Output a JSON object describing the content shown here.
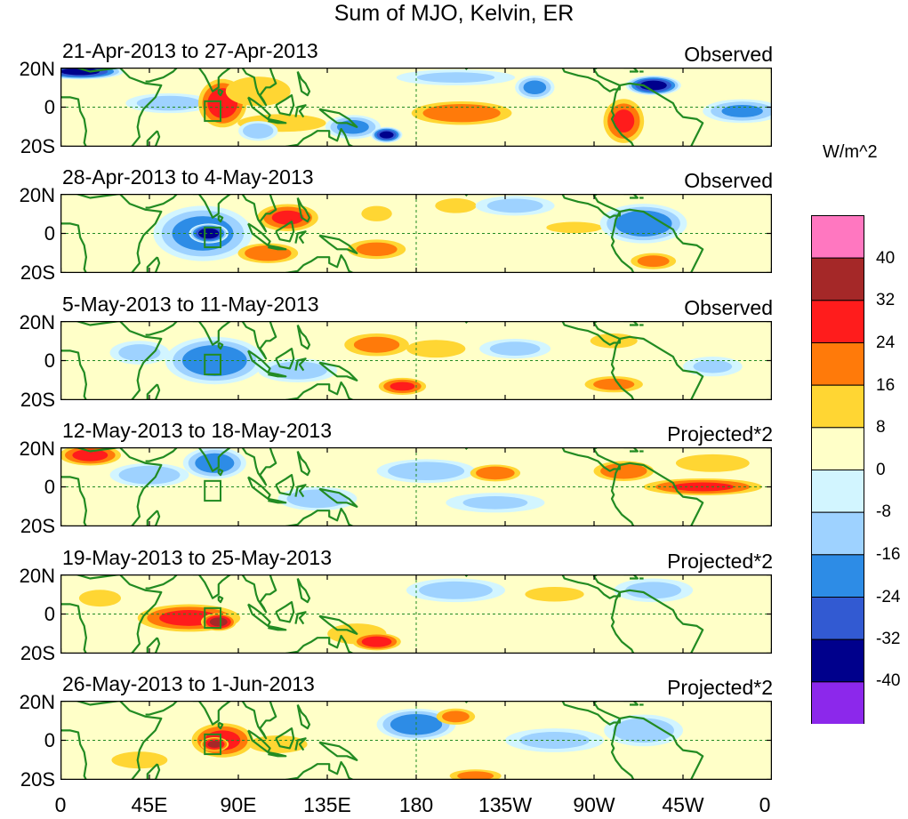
{
  "title": "Sum of MJO, Kelvin, ER",
  "units": "W/m^2",
  "panels": [
    {
      "date_range": "21-Apr-2013 to 27-Apr-2013",
      "type": "Observed",
      "anomalies": [
        {
          "lon": 10,
          "lat": 18,
          "w": 22,
          "h": 4,
          "v": -34
        },
        {
          "lon": 55,
          "lat": 2,
          "w": 22,
          "h": 5,
          "v": -12
        },
        {
          "lon": 82,
          "lat": 2,
          "w": 14,
          "h": 14,
          "v": 28
        },
        {
          "lon": 100,
          "lat": 8,
          "w": 22,
          "h": 10,
          "v": 12
        },
        {
          "lon": 112,
          "lat": -8,
          "w": 30,
          "h": 6,
          "v": 12
        },
        {
          "lon": 100,
          "lat": -12,
          "w": 10,
          "h": 5,
          "v": -14
        },
        {
          "lon": 148,
          "lat": -10,
          "w": 14,
          "h": 6,
          "v": -18
        },
        {
          "lon": 165,
          "lat": -14,
          "w": 8,
          "h": 4,
          "v": -34
        },
        {
          "lon": 203,
          "lat": -3,
          "w": 30,
          "h": 7,
          "v": 22
        },
        {
          "lon": 200,
          "lat": 15,
          "w": 30,
          "h": 4,
          "v": -8
        },
        {
          "lon": 240,
          "lat": 10,
          "w": 10,
          "h": 6,
          "v": -18
        },
        {
          "lon": 285,
          "lat": -7,
          "w": 12,
          "h": 13,
          "v": 24
        },
        {
          "lon": 300,
          "lat": 11,
          "w": 14,
          "h": 5,
          "v": -36
        },
        {
          "lon": 345,
          "lat": -2,
          "w": 20,
          "h": 6,
          "v": -16
        },
        {
          "lon": 30,
          "lat": -12,
          "w": 20,
          "h": 6,
          "v": 6
        }
      ]
    },
    {
      "date_range": "28-Apr-2013 to 4-May-2013",
      "type": "Observed",
      "anomalies": [
        {
          "lon": 72,
          "lat": 0,
          "w": 25,
          "h": 14,
          "v": -20
        },
        {
          "lon": 75,
          "lat": 0,
          "w": 10,
          "h": 5,
          "v": -38
        },
        {
          "lon": 115,
          "lat": 8,
          "w": 18,
          "h": 8,
          "v": 24
        },
        {
          "lon": 105,
          "lat": -10,
          "w": 18,
          "h": 6,
          "v": 22
        },
        {
          "lon": 160,
          "lat": 10,
          "w": 10,
          "h": 5,
          "v": 14
        },
        {
          "lon": 160,
          "lat": -8,
          "w": 18,
          "h": 6,
          "v": 18
        },
        {
          "lon": 200,
          "lat": 14,
          "w": 14,
          "h": 5,
          "v": 12
        },
        {
          "lon": 230,
          "lat": 14,
          "w": 20,
          "h": 5,
          "v": -10
        },
        {
          "lon": 260,
          "lat": 3,
          "w": 20,
          "h": 4,
          "v": 10
        },
        {
          "lon": 295,
          "lat": 5,
          "w": 22,
          "h": 10,
          "v": -22
        },
        {
          "lon": 300,
          "lat": -14,
          "w": 14,
          "h": 5,
          "v": 18
        },
        {
          "lon": 30,
          "lat": 0,
          "w": 30,
          "h": 10,
          "v": 6
        }
      ]
    },
    {
      "date_range": "5-May-2013 to 11-May-2013",
      "type": "Observed",
      "anomalies": [
        {
          "lon": 78,
          "lat": 0,
          "w": 25,
          "h": 12,
          "v": -22
        },
        {
          "lon": 40,
          "lat": 4,
          "w": 15,
          "h": 6,
          "v": -10
        },
        {
          "lon": 160,
          "lat": 8,
          "w": 20,
          "h": 7,
          "v": 18
        },
        {
          "lon": 190,
          "lat": 6,
          "w": 20,
          "h": 6,
          "v": 12
        },
        {
          "lon": 173,
          "lat": -13,
          "w": 14,
          "h": 5,
          "v": 24
        },
        {
          "lon": 280,
          "lat": -12,
          "w": 18,
          "h": 5,
          "v": 18
        },
        {
          "lon": 280,
          "lat": 10,
          "w": 16,
          "h": 5,
          "v": 12
        },
        {
          "lon": 230,
          "lat": 6,
          "w": 18,
          "h": 5,
          "v": -10
        },
        {
          "lon": 120,
          "lat": -5,
          "w": 20,
          "h": 6,
          "v": -12
        },
        {
          "lon": 330,
          "lat": -3,
          "w": 15,
          "h": 5,
          "v": -8
        }
      ]
    },
    {
      "date_range": "12-May-2013 to 18-May-2013",
      "type": "Projected*2",
      "anomalies": [
        {
          "lon": 15,
          "lat": 16,
          "w": 18,
          "h": 6,
          "v": 26
        },
        {
          "lon": 45,
          "lat": 6,
          "w": 20,
          "h": 6,
          "v": -14
        },
        {
          "lon": 78,
          "lat": 12,
          "w": 16,
          "h": 8,
          "v": -20
        },
        {
          "lon": 130,
          "lat": -6,
          "w": 20,
          "h": 6,
          "v": -14
        },
        {
          "lon": 185,
          "lat": 8,
          "w": 25,
          "h": 6,
          "v": -14
        },
        {
          "lon": 220,
          "lat": 7,
          "w": 15,
          "h": 5,
          "v": 22
        },
        {
          "lon": 285,
          "lat": 8,
          "w": 18,
          "h": 6,
          "v": 22
        },
        {
          "lon": 325,
          "lat": 0,
          "w": 35,
          "h": 5,
          "v": 24
        },
        {
          "lon": 330,
          "lat": 12,
          "w": 25,
          "h": 6,
          "v": 12
        },
        {
          "lon": 220,
          "lat": -8,
          "w": 25,
          "h": 5,
          "v": -8
        }
      ]
    },
    {
      "date_range": "19-May-2013 to 25-May-2013",
      "type": "Projected*2",
      "anomalies": [
        {
          "lon": 65,
          "lat": -2,
          "w": 30,
          "h": 8,
          "v": 26
        },
        {
          "lon": 80,
          "lat": -4,
          "w": 10,
          "h": 5,
          "v": 34
        },
        {
          "lon": 150,
          "lat": -10,
          "w": 20,
          "h": 7,
          "v": 12
        },
        {
          "lon": 160,
          "lat": -14,
          "w": 14,
          "h": 5,
          "v": 28
        },
        {
          "lon": 200,
          "lat": 12,
          "w": 25,
          "h": 6,
          "v": -12
        },
        {
          "lon": 250,
          "lat": 10,
          "w": 20,
          "h": 5,
          "v": 12
        },
        {
          "lon": 300,
          "lat": 12,
          "w": 20,
          "h": 6,
          "v": -10
        },
        {
          "lon": 20,
          "lat": 8,
          "w": 15,
          "h": 6,
          "v": 10
        }
      ]
    },
    {
      "date_range": "26-May-2013 to 1-Jun-2013",
      "type": "Projected*2",
      "anomalies": [
        {
          "lon": 82,
          "lat": 0,
          "w": 18,
          "h": 10,
          "v": 26
        },
        {
          "lon": 78,
          "lat": -2,
          "w": 8,
          "h": 4,
          "v": 34
        },
        {
          "lon": 110,
          "lat": -2,
          "w": 20,
          "h": 6,
          "v": 12
        },
        {
          "lon": 180,
          "lat": 8,
          "w": 20,
          "h": 8,
          "v": -22
        },
        {
          "lon": 200,
          "lat": 12,
          "w": 12,
          "h": 5,
          "v": 18
        },
        {
          "lon": 210,
          "lat": -18,
          "w": 16,
          "h": 4,
          "v": 18
        },
        {
          "lon": 250,
          "lat": 0,
          "w": 25,
          "h": 6,
          "v": -10
        },
        {
          "lon": 40,
          "lat": -10,
          "w": 20,
          "h": 6,
          "v": 10
        },
        {
          "lon": 295,
          "lat": 5,
          "w": 20,
          "h": 8,
          "v": -14
        }
      ]
    }
  ],
  "y_tick_labels": [
    "20N",
    "0",
    "20S"
  ],
  "x_tick_labels": [
    "0",
    "45E",
    "90E",
    "135E",
    "180",
    "135W",
    "90W",
    "45W",
    "0"
  ],
  "colorbar": {
    "labels": [
      "40",
      "32",
      "24",
      "16",
      "8",
      "0",
      "-8",
      "-16",
      "-24",
      "-32",
      "-40"
    ],
    "colors": [
      "#ff77c0",
      "#a52828",
      "#ff1c1c",
      "#ff7a0a",
      "#ffd633",
      "#ffffc8",
      "#d2f5ff",
      "#9ed2ff",
      "#2d8ce6",
      "#325ad2",
      "#00008c",
      "#8c28eb"
    ]
  },
  "land_color": "#228b22"
}
